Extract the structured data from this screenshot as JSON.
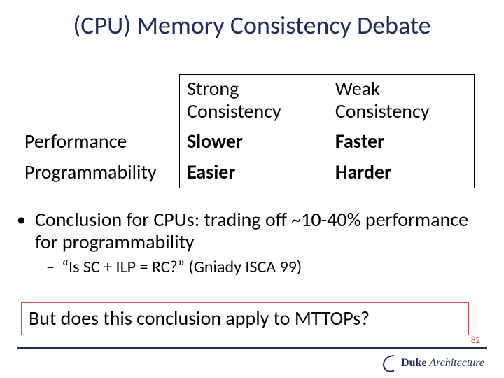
{
  "title": "(CPU) Memory Consistency Debate",
  "table": {
    "header_col1": "Strong Consistency",
    "header_col2": "Weak Consistency",
    "row1_label": "Performance",
    "row1_col1": "Slower",
    "row1_col2": "Faster",
    "row2_label": "Programmability",
    "row2_col1": "Easier",
    "row2_col2": "Harder"
  },
  "bullet_lvl1": "Conclusion for CPUs: trading off ~10-40% performance for programmability",
  "bullet_lvl2": "“Is SC + ILP = RC?” (Gniady ISCA 99)",
  "callout": "But does this conclusion apply to MTTOPs?",
  "page_number": "82",
  "footer_brand_duke": "Duke",
  "footer_brand_arch": " Architecture",
  "colors": {
    "title_color": "#1f2a5a",
    "callout_border": "#c0504d",
    "page_number_color": "#c0504d",
    "rule_color": "#1f2a5a",
    "table_border": "#000000",
    "background": "#ffffff"
  }
}
